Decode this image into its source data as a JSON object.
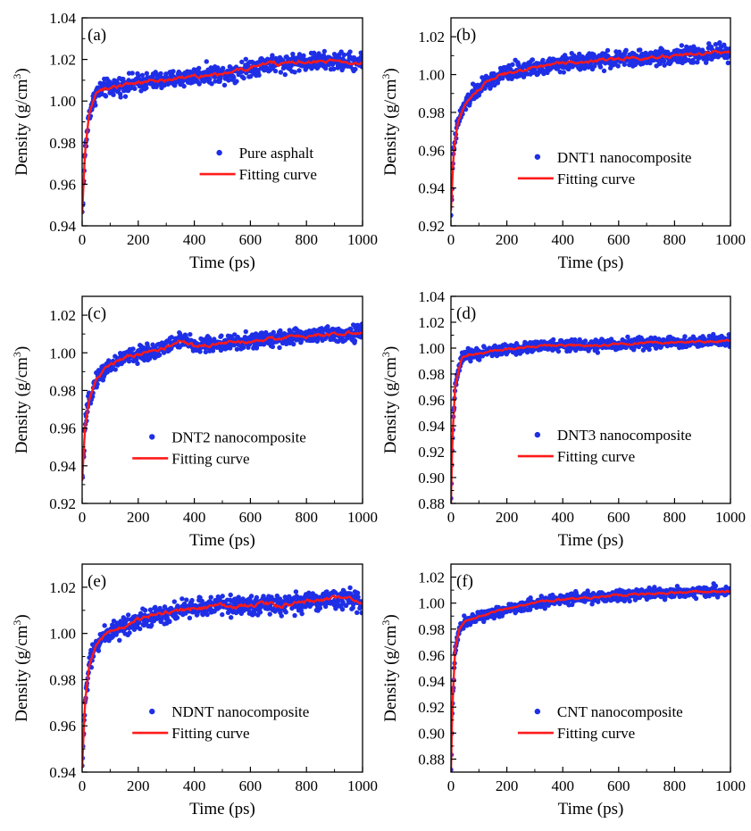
{
  "figure": {
    "background": "#ffffff"
  },
  "colors": {
    "points": "#1f2fe6",
    "fit": "#ff1a1a",
    "axis": "#000000"
  },
  "chart_data": [
    {
      "type": "scatter",
      "panel_label": "(a)",
      "xlabel": "Time (ps)",
      "ylabel": "Density (g/cm",
      "ylabel_sup": "3",
      "ylabel_tail": ")",
      "xlim": [
        0,
        1000
      ],
      "ylim": [
        0.94,
        1.04
      ],
      "xticks": [
        "0",
        "200",
        "400",
        "600",
        "800",
        "1000"
      ],
      "yticks": [
        "0.94",
        "0.96",
        "0.98",
        "1.00",
        "1.02",
        "1.04"
      ],
      "legend_position": "lower-right",
      "series": [
        {
          "name": "Pure asphalt",
          "kind": "points",
          "noise": 0.003,
          "x": [
            0,
            10,
            25,
            50,
            80,
            120,
            160,
            200,
            300,
            400,
            450,
            500,
            600,
            650,
            700,
            800,
            900,
            1000
          ],
          "y": [
            0.946,
            0.975,
            0.994,
            1.004,
            1.006,
            1.007,
            1.008,
            1.009,
            1.01,
            1.012,
            1.013,
            1.013,
            1.016,
            1.018,
            1.018,
            1.019,
            1.019,
            1.019
          ]
        },
        {
          "name": "Fitting curve",
          "kind": "line",
          "x": [
            0,
            10,
            25,
            50,
            80,
            120,
            160,
            200,
            300,
            400,
            450,
            500,
            600,
            650,
            700,
            800,
            900,
            1000
          ],
          "y": [
            0.946,
            0.975,
            0.994,
            1.004,
            1.006,
            1.007,
            1.008,
            1.009,
            1.01,
            1.012,
            1.013,
            1.013,
            1.016,
            1.018,
            1.018,
            1.019,
            1.019,
            1.019
          ]
        }
      ]
    },
    {
      "type": "scatter",
      "panel_label": "(b)",
      "xlabel": "Time (ps)",
      "ylabel": "Density (g/cm",
      "ylabel_sup": "3",
      "ylabel_tail": ")",
      "xlim": [
        0,
        1000
      ],
      "ylim": [
        0.92,
        1.03
      ],
      "xticks": [
        "0",
        "200",
        "400",
        "600",
        "800",
        "1000"
      ],
      "yticks": [
        "0.92",
        "0.94",
        "0.96",
        "0.98",
        "1.00",
        "1.02"
      ],
      "legend_position": "lower-right",
      "series": [
        {
          "name": "DNT1 nanocomposite",
          "kind": "points",
          "noise": 0.003,
          "x": [
            0,
            10,
            25,
            50,
            80,
            120,
            160,
            200,
            300,
            400,
            500,
            600,
            700,
            800,
            900,
            950,
            1000
          ],
          "y": [
            0.928,
            0.96,
            0.975,
            0.984,
            0.99,
            0.995,
            0.998,
            1.001,
            1.004,
            1.006,
            1.007,
            1.008,
            1.009,
            1.01,
            1.011,
            1.012,
            1.011
          ]
        },
        {
          "name": "Fitting curve",
          "kind": "line",
          "x": [
            0,
            10,
            25,
            50,
            80,
            120,
            160,
            200,
            300,
            400,
            500,
            600,
            700,
            800,
            900,
            950,
            1000
          ],
          "y": [
            0.928,
            0.96,
            0.975,
            0.984,
            0.99,
            0.995,
            0.998,
            1.001,
            1.004,
            1.006,
            1.007,
            1.008,
            1.009,
            1.01,
            1.011,
            1.012,
            1.011
          ]
        }
      ]
    },
    {
      "type": "scatter",
      "panel_label": "(c)",
      "xlabel": "Time (ps)",
      "ylabel": "Density (g/cm",
      "ylabel_sup": "3",
      "ylabel_tail": ")",
      "xlim": [
        0,
        1000
      ],
      "ylim": [
        0.92,
        1.03
      ],
      "xticks": [
        "0",
        "200",
        "400",
        "600",
        "800",
        "1000"
      ],
      "yticks": [
        "0.92",
        "0.94",
        "0.96",
        "0.98",
        "1.00",
        "1.02"
      ],
      "legend_position": "lower-right",
      "series": [
        {
          "name": "DNT2 nanocomposite",
          "kind": "points",
          "noise": 0.003,
          "x": [
            0,
            10,
            25,
            50,
            80,
            120,
            160,
            200,
            300,
            350,
            400,
            500,
            600,
            700,
            800,
            900,
            1000
          ],
          "y": [
            0.932,
            0.96,
            0.975,
            0.986,
            0.991,
            0.995,
            0.998,
            0.999,
            1.003,
            1.007,
            1.004,
            1.005,
            1.006,
            1.008,
            1.009,
            1.01,
            1.011
          ]
        },
        {
          "name": "Fitting curve",
          "kind": "line",
          "x": [
            0,
            10,
            25,
            50,
            80,
            120,
            160,
            200,
            300,
            350,
            400,
            500,
            600,
            700,
            800,
            900,
            1000
          ],
          "y": [
            0.932,
            0.96,
            0.975,
            0.986,
            0.991,
            0.995,
            0.998,
            0.999,
            1.003,
            1.007,
            1.004,
            1.005,
            1.006,
            1.008,
            1.009,
            1.01,
            1.011
          ]
        }
      ]
    },
    {
      "type": "scatter",
      "panel_label": "(d)",
      "xlabel": "Time (ps)",
      "ylabel": "Density (g/cm",
      "ylabel_sup": "3",
      "ylabel_tail": ")",
      "xlim": [
        0,
        1000
      ],
      "ylim": [
        0.88,
        1.04
      ],
      "xticks": [
        "0",
        "200",
        "400",
        "600",
        "800",
        "1000"
      ],
      "yticks": [
        "0.88",
        "0.90",
        "0.92",
        "0.94",
        "0.96",
        "0.98",
        "1.00",
        "1.02",
        "1.04"
      ],
      "legend_position": "lower-right",
      "series": [
        {
          "name": "DNT3 nanocomposite",
          "kind": "points",
          "noise": 0.003,
          "x": [
            0,
            5,
            15,
            30,
            40,
            60,
            100,
            150,
            200,
            300,
            400,
            500,
            600,
            700,
            800,
            900,
            1000
          ],
          "y": [
            0.88,
            0.93,
            0.97,
            0.985,
            0.993,
            0.994,
            0.996,
            0.998,
            0.999,
            1.001,
            1.002,
            1.002,
            1.003,
            1.004,
            1.004,
            1.005,
            1.006
          ]
        },
        {
          "name": "Fitting curve",
          "kind": "line",
          "x": [
            0,
            5,
            15,
            30,
            40,
            60,
            100,
            150,
            200,
            300,
            400,
            500,
            600,
            700,
            800,
            900,
            1000
          ],
          "y": [
            0.88,
            0.93,
            0.97,
            0.985,
            0.993,
            0.994,
            0.996,
            0.998,
            0.999,
            1.001,
            1.002,
            1.002,
            1.003,
            1.004,
            1.004,
            1.005,
            1.006
          ]
        }
      ]
    },
    {
      "type": "scatter",
      "panel_label": "(e)",
      "xlabel": "Time (ps)",
      "ylabel": "Density (g/cm",
      "ylabel_sup": "3",
      "ylabel_tail": ")",
      "xlim": [
        0,
        1000
      ],
      "ylim": [
        0.94,
        1.03
      ],
      "xticks": [
        "0",
        "200",
        "400",
        "600",
        "800",
        "1000"
      ],
      "yticks": [
        "0.94",
        "0.96",
        "0.98",
        "1.00",
        "1.02"
      ],
      "legend_position": "lower-right",
      "series": [
        {
          "name": "NDNT nanocomposite",
          "kind": "points",
          "noise": 0.003,
          "x": [
            0,
            10,
            25,
            50,
            80,
            120,
            160,
            200,
            300,
            400,
            500,
            600,
            650,
            700,
            800,
            900,
            950,
            1000
          ],
          "y": [
            0.942,
            0.97,
            0.986,
            0.995,
            0.999,
            1.002,
            1.004,
            1.006,
            1.009,
            1.011,
            1.012,
            1.012,
            1.013,
            1.012,
            1.014,
            1.015,
            1.015,
            1.013
          ]
        },
        {
          "name": "Fitting curve",
          "kind": "line",
          "x": [
            0,
            10,
            25,
            50,
            80,
            120,
            160,
            200,
            300,
            400,
            500,
            600,
            650,
            700,
            800,
            900,
            950,
            1000
          ],
          "y": [
            0.942,
            0.97,
            0.986,
            0.995,
            0.999,
            1.002,
            1.004,
            1.006,
            1.009,
            1.011,
            1.012,
            1.012,
            1.013,
            1.012,
            1.014,
            1.015,
            1.015,
            1.013
          ]
        }
      ]
    },
    {
      "type": "scatter",
      "panel_label": "(f)",
      "xlabel": "Time (ps)",
      "ylabel": "Density (g/cm",
      "ylabel_sup": "3",
      "ylabel_tail": ")",
      "xlim": [
        0,
        1000
      ],
      "ylim": [
        0.87,
        1.03
      ],
      "xticks": [
        "0",
        "200",
        "400",
        "600",
        "800",
        "1000"
      ],
      "yticks": [
        "0.88",
        "0.90",
        "0.92",
        "0.94",
        "0.96",
        "0.98",
        "1.00",
        "1.02"
      ],
      "legend_position": "lower-right",
      "series": [
        {
          "name": "CNT nanocomposite",
          "kind": "points",
          "noise": 0.003,
          "x": [
            0,
            5,
            15,
            30,
            50,
            80,
            120,
            200,
            300,
            400,
            500,
            600,
            700,
            800,
            900,
            1000
          ],
          "y": [
            0.87,
            0.92,
            0.965,
            0.98,
            0.986,
            0.989,
            0.991,
            0.995,
            1.0,
            1.003,
            1.004,
            1.006,
            1.007,
            1.008,
            1.009,
            1.009
          ]
        },
        {
          "name": "Fitting curve",
          "kind": "line",
          "x": [
            0,
            5,
            15,
            30,
            50,
            80,
            120,
            200,
            300,
            400,
            500,
            600,
            700,
            800,
            900,
            1000
          ],
          "y": [
            0.87,
            0.92,
            0.965,
            0.98,
            0.986,
            0.989,
            0.991,
            0.995,
            1.0,
            1.003,
            1.004,
            1.006,
            1.007,
            1.008,
            1.009,
            1.009
          ]
        }
      ]
    }
  ]
}
